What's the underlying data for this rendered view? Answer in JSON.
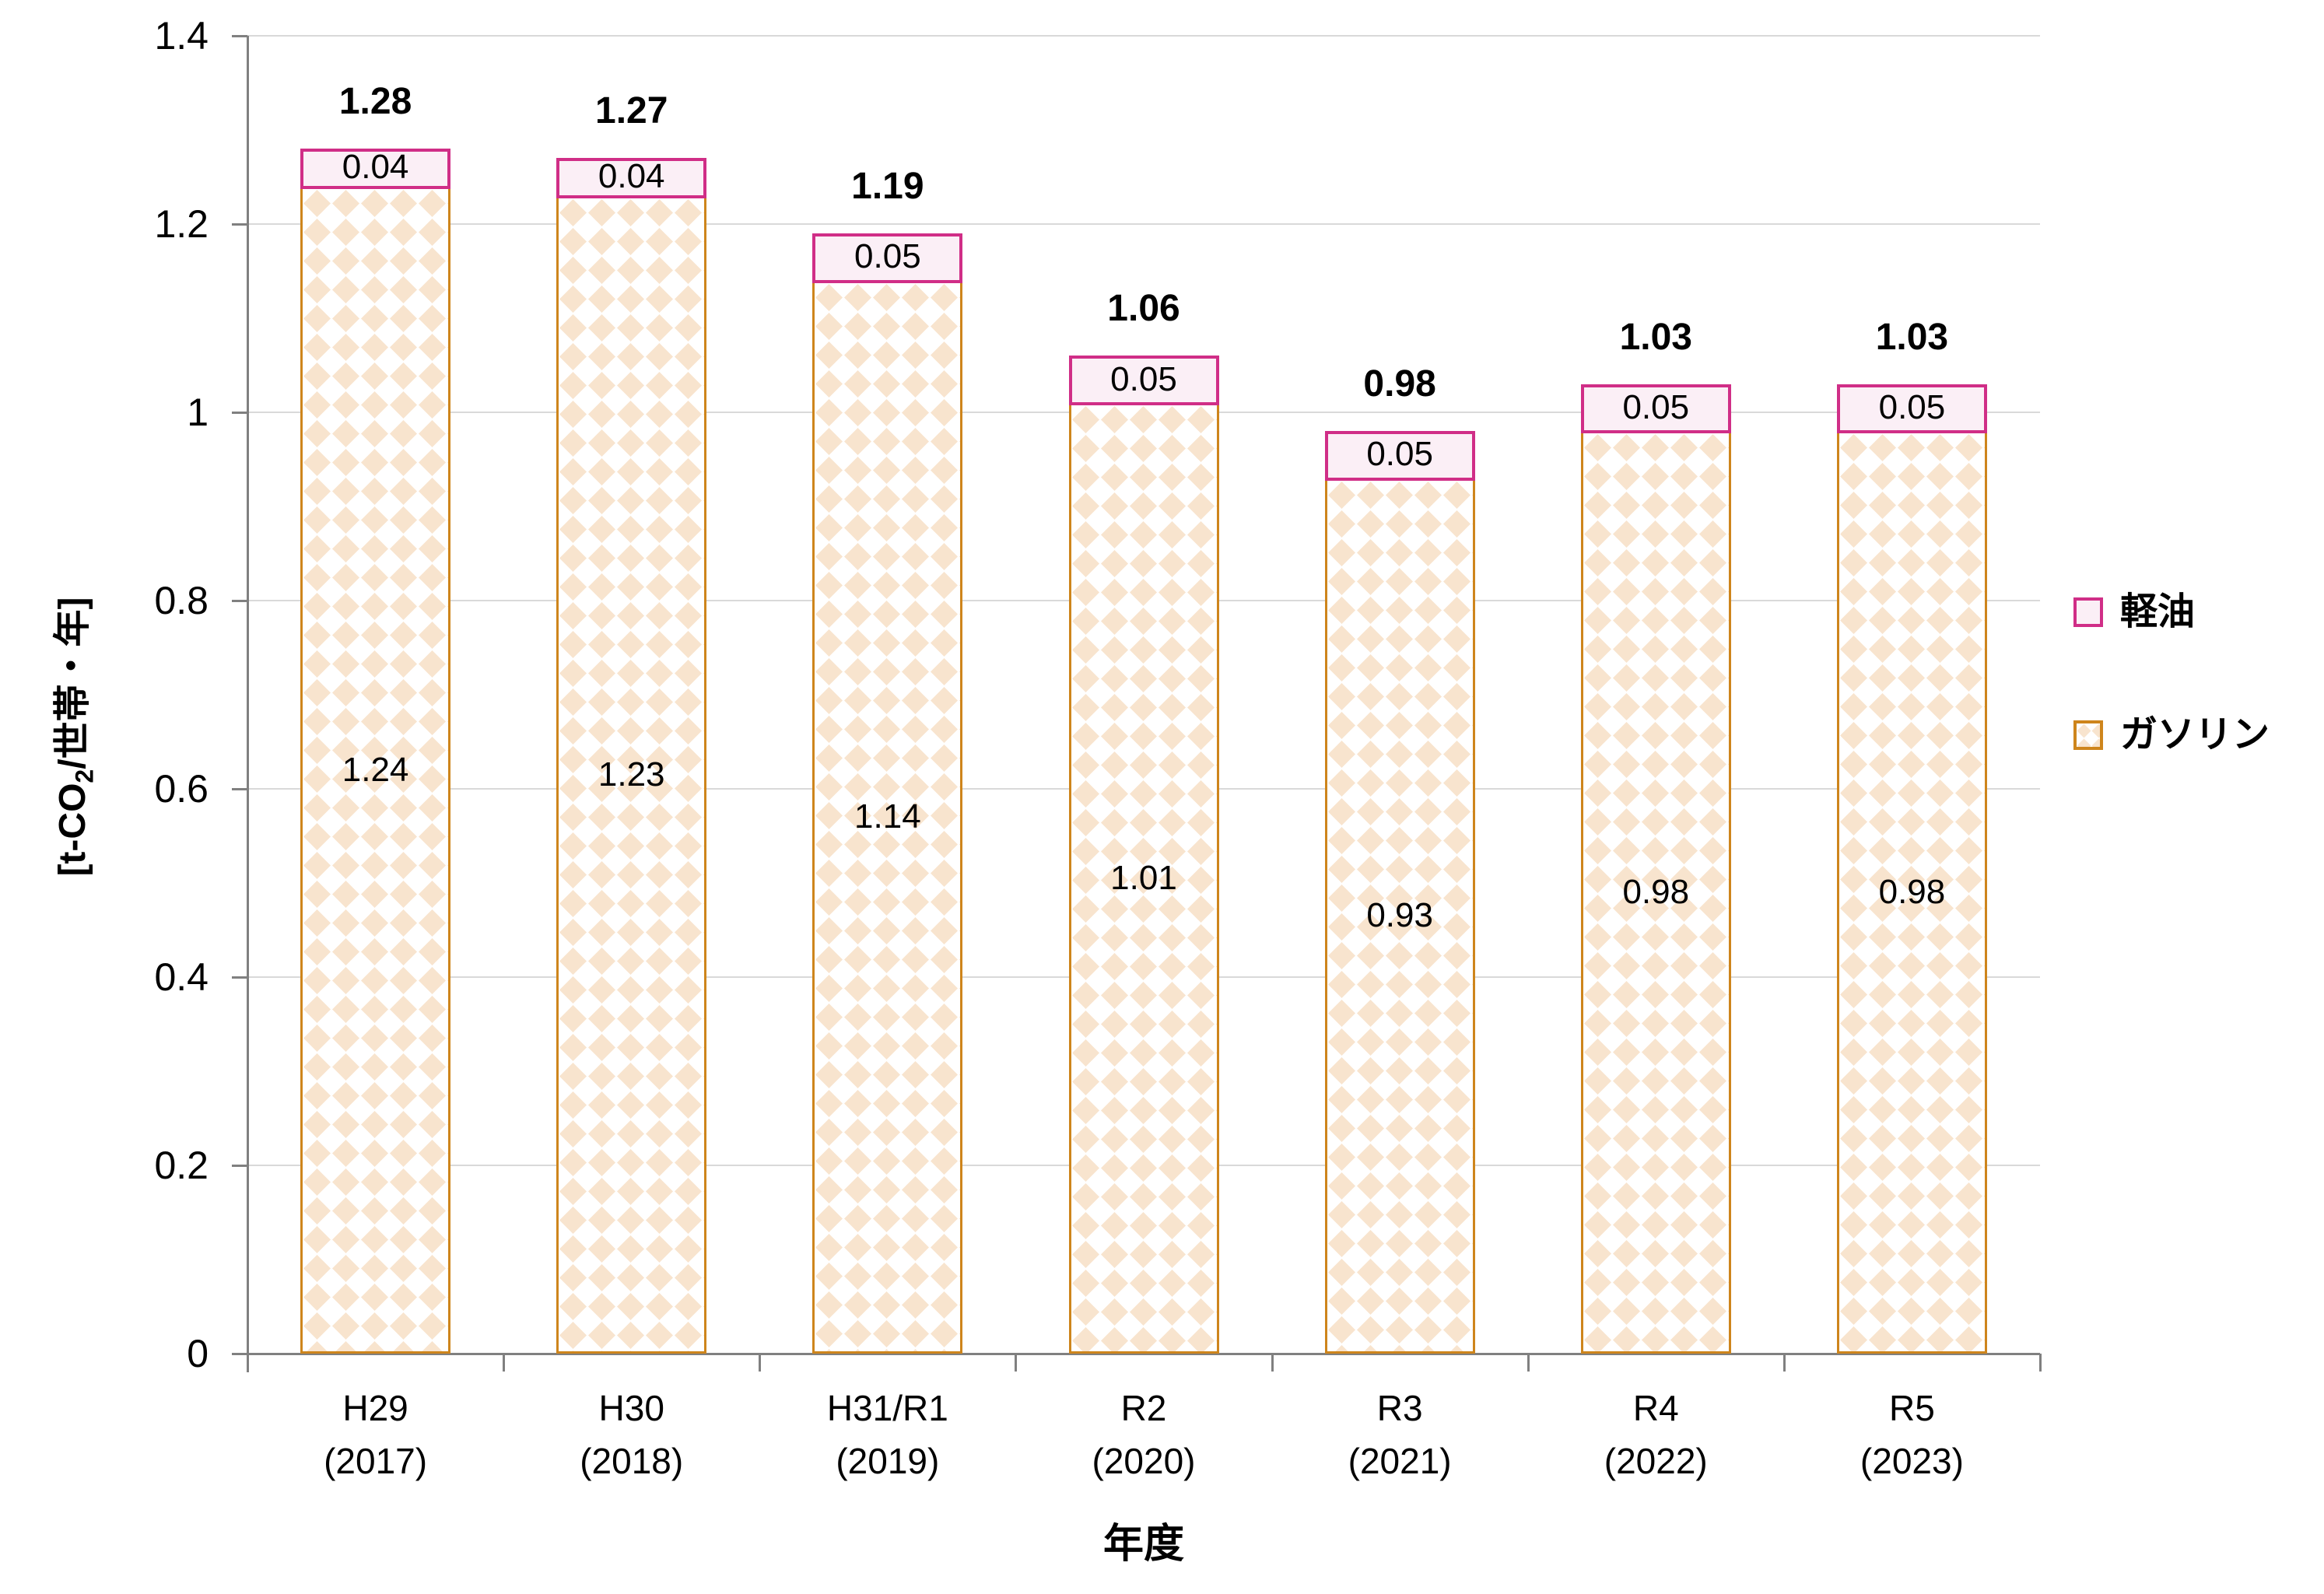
{
  "chart_data": {
    "type": "bar",
    "stacked": true,
    "categories": [
      "H29",
      "H30",
      "H31/R1",
      "R2",
      "R3",
      "R4",
      "R5"
    ],
    "category_years": [
      "(2017)",
      "(2018)",
      "(2019)",
      "(2020)",
      "(2021)",
      "(2022)",
      "(2023)"
    ],
    "series": [
      {
        "name": "ガソリン",
        "values": [
          1.24,
          1.23,
          1.14,
          1.01,
          0.93,
          0.98,
          0.98
        ]
      },
      {
        "name": "軽油",
        "values": [
          0.04,
          0.04,
          0.05,
          0.05,
          0.05,
          0.05,
          0.05
        ]
      }
    ],
    "totals": [
      1.28,
      1.27,
      1.19,
      1.06,
      0.98,
      1.03,
      1.03
    ],
    "xlabel": "年度",
    "ylabel": "[t-CO2/世帯・年]",
    "ylim": [
      0,
      1.4
    ],
    "yticks": [
      0,
      0.2,
      0.4,
      0.6,
      0.8,
      1,
      1.2,
      1.4
    ],
    "ytick_labels": [
      "0",
      "0.2",
      "0.4",
      "0.6",
      "0.8",
      "1",
      "1.2",
      "1.4"
    ],
    "grid": true,
    "legend_position": "right"
  },
  "y_axis_title_parts": {
    "pre": "[t-CO",
    "sub": "2",
    "post": "/世帯・年]"
  },
  "colors": {
    "gasoline_border": "#CE851C",
    "gasoline_pattern": "#F8E4CE",
    "diesel_border": "#D02E87",
    "diesel_fill": "#FBEFF6",
    "gridline": "#D9D9D9",
    "axis": "#808080",
    "text": "#000000"
  }
}
